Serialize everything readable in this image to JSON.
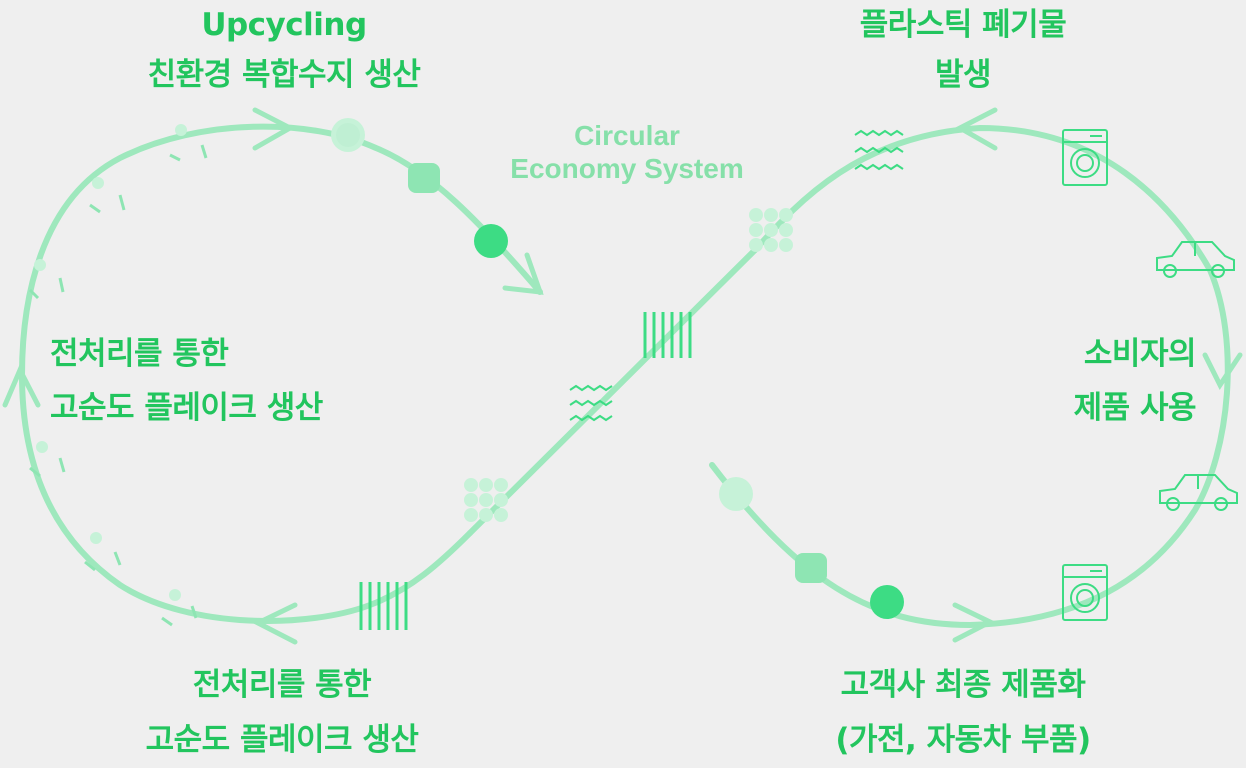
{
  "diagram": {
    "title_lines": [
      "Circular",
      "Economy System"
    ],
    "stages": {
      "upcycling": {
        "line1": "Upcycling",
        "line2": "친환경 복합수지 생산"
      },
      "waste": {
        "line1": "플라스틱 폐기물",
        "line2": "발생"
      },
      "consumer": {
        "line1": "소비자의",
        "line2": "제품 사용"
      },
      "customer": {
        "line1": "고객사 최종 제품화",
        "line2": "(가전, 자동차 부품)"
      },
      "pretreat_bottom": {
        "line1": "전처리를 통한",
        "line2": "고순도 플레이크 생산"
      },
      "pretreat_left": {
        "line1": "전처리를 통한",
        "line2": "고순도 플레이크 생산"
      }
    },
    "icons": [
      "washing-machine-icon",
      "car-icon",
      "flake-cluster-icon",
      "wave-lines-icon",
      "barcode-lines-icon",
      "pellet-icon"
    ],
    "colors": {
      "background": "#efefef",
      "loop": "#9ee8bd",
      "text": "#22c55e",
      "title": "#86e0a9",
      "pellet_dark": "#3ddc84"
    }
  }
}
